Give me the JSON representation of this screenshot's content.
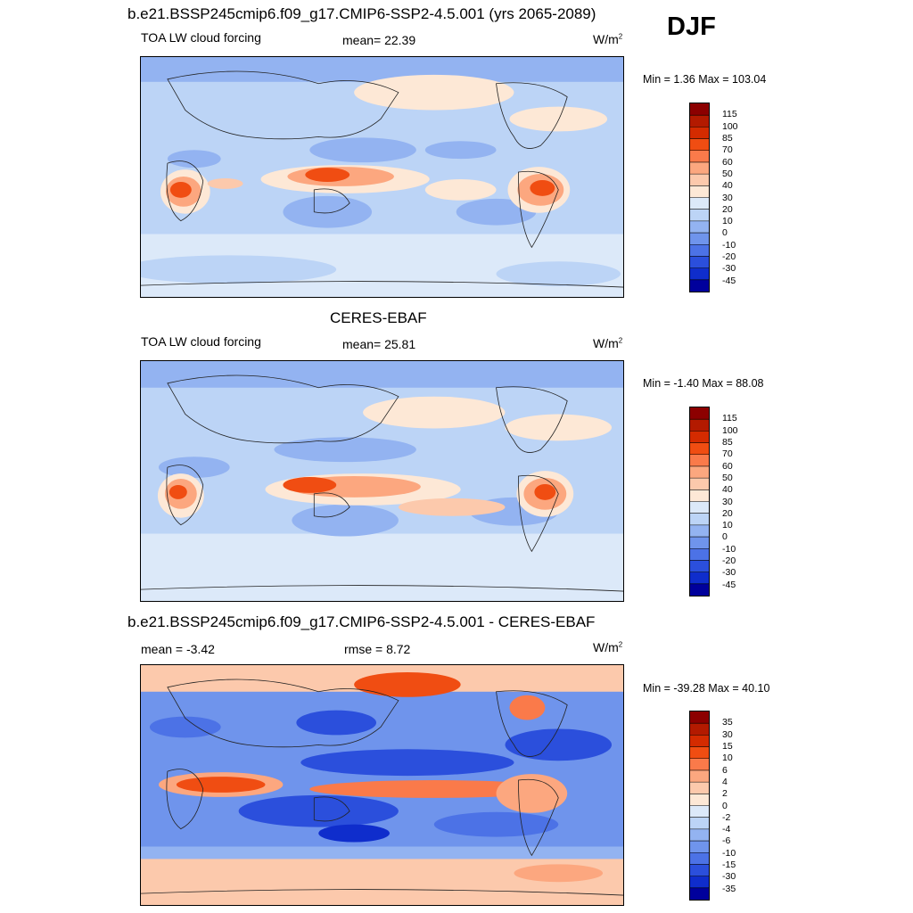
{
  "season": "DJF",
  "panels": [
    {
      "title": "b.e21.BSSP245cmip6.f09_g17.CMIP6-SSP2-4.5.001 (yrs 2065-2089)",
      "left_label": "TOA LW cloud forcing",
      "center_label": "mean=  22.39",
      "units": "W/m",
      "units_exp": "2",
      "minmax": "Min =   1.36 Max = 103.04",
      "colorbar": {
        "labels": [
          "115",
          "100",
          "85",
          "70",
          "60",
          "50",
          "40",
          "30",
          "20",
          "10",
          "0",
          "-10",
          "-20",
          "-30",
          "-45"
        ],
        "colors": [
          "#8c0000",
          "#b31a00",
          "#d42b00",
          "#f04d12",
          "#fa7a4a",
          "#fca77f",
          "#fcc9ac",
          "#fde8d6",
          "#dce9f9",
          "#bcd4f6",
          "#93b3f1",
          "#6f94ec",
          "#4c72e6",
          "#2b4fdc",
          "#0f2dcc",
          "#00009c"
        ]
      }
    },
    {
      "title": "CERES-EBAF",
      "left_label": "TOA LW cloud forcing",
      "center_label": "mean=  25.81",
      "units": "W/m",
      "units_exp": "2",
      "minmax": "Min =  -1.40 Max =  88.08",
      "colorbar": {
        "labels": [
          "115",
          "100",
          "85",
          "70",
          "60",
          "50",
          "40",
          "30",
          "20",
          "10",
          "0",
          "-10",
          "-20",
          "-30",
          "-45"
        ],
        "colors": [
          "#8c0000",
          "#b31a00",
          "#d42b00",
          "#f04d12",
          "#fa7a4a",
          "#fca77f",
          "#fcc9ac",
          "#fde8d6",
          "#dce9f9",
          "#bcd4f6",
          "#93b3f1",
          "#6f94ec",
          "#4c72e6",
          "#2b4fdc",
          "#0f2dcc",
          "#00009c"
        ]
      }
    },
    {
      "title": "b.e21.BSSP245cmip6.f09_g17.CMIP6-SSP2-4.5.001 - CERES-EBAF",
      "left_label": "mean =  -3.42",
      "center_label": "rmse =   8.72",
      "units": "W/m",
      "units_exp": "2",
      "minmax": "Min = -39.28 Max =  40.10",
      "colorbar": {
        "labels": [
          "35",
          "30",
          "15",
          "10",
          "6",
          "4",
          "2",
          "0",
          "-2",
          "-4",
          "-6",
          "-10",
          "-15",
          "-30",
          "-35"
        ],
        "colors": [
          "#8c0000",
          "#b31a00",
          "#d42b00",
          "#f04d12",
          "#fa7a4a",
          "#fca77f",
          "#fcc9ac",
          "#fde8d6",
          "#dce9f9",
          "#bcd4f6",
          "#93b3f1",
          "#6f94ec",
          "#4c72e6",
          "#2b4fdc",
          "#0f2dcc",
          "#00009c"
        ]
      }
    }
  ]
}
